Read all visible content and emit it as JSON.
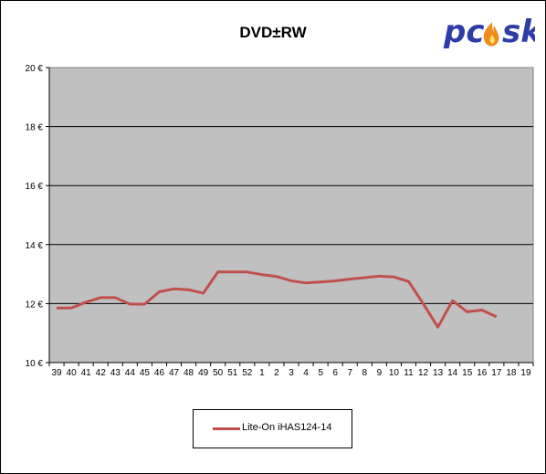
{
  "chart_data": {
    "type": "line",
    "title": "DVD±RW",
    "xlabel": "",
    "ylabel": "",
    "categories": [
      "39",
      "40",
      "41",
      "42",
      "43",
      "44",
      "45",
      "46",
      "47",
      "48",
      "49",
      "50",
      "51",
      "52",
      "1",
      "2",
      "3",
      "4",
      "5",
      "6",
      "7",
      "8",
      "9",
      "10",
      "11",
      "12",
      "13",
      "14",
      "15",
      "16",
      "17",
      "18",
      "19"
    ],
    "y_tick_labels": [
      "10 €",
      "12 €",
      "14 €",
      "16 €",
      "18 €",
      "20 €"
    ],
    "ylim": [
      10,
      20
    ],
    "grid": true,
    "legend_position": "bottom",
    "series": [
      {
        "name": "Lite-On  iHAS124-14",
        "color": "#c0504d",
        "values": [
          11.85,
          11.85,
          12.05,
          12.2,
          12.2,
          11.98,
          11.98,
          12.4,
          12.5,
          12.47,
          12.35,
          13.07,
          13.07,
          13.07,
          12.98,
          12.92,
          12.77,
          12.7,
          12.73,
          12.77,
          12.83,
          12.88,
          12.93,
          12.9,
          12.75,
          12.0,
          11.2,
          12.1,
          11.72,
          11.78,
          11.55,
          null,
          null
        ]
      }
    ],
    "colors": {
      "plot_bg": "#c0c0c0",
      "gridline": "#000000"
    }
  },
  "logo": {
    "text": "pcosk",
    "colors": {
      "main": "#2e3da6",
      "flame": "#f08c1a"
    }
  }
}
